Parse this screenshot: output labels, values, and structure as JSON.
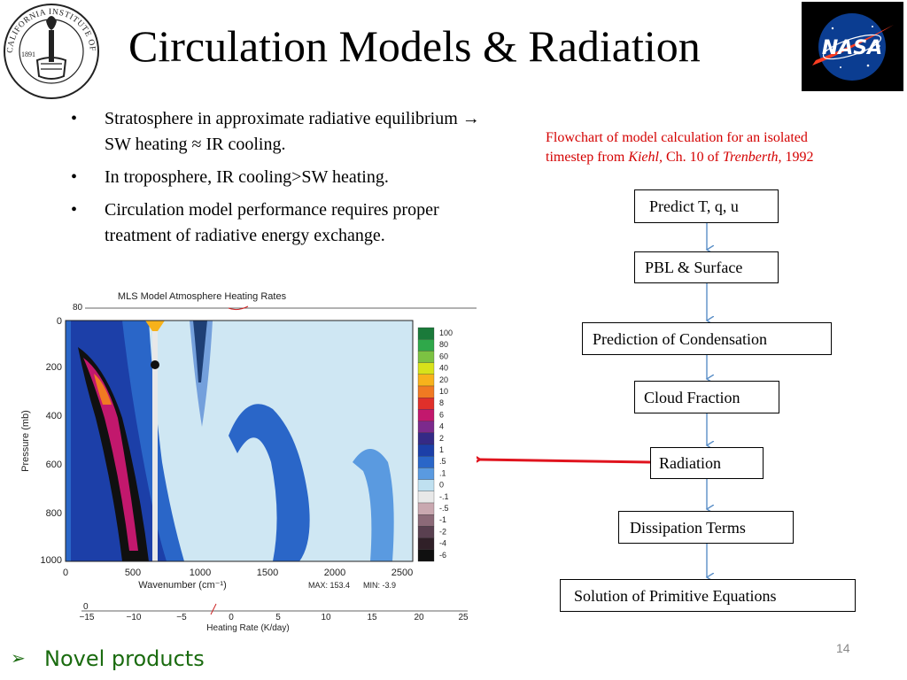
{
  "slide": {
    "title": "Circulation Models & Radiation",
    "page_number": "14"
  },
  "logos": {
    "caltech_seal_text": "CALIFORNIA INSTITUTE OF TECHNOLOGY",
    "caltech_year": "1891",
    "nasa_text": "NASA"
  },
  "bullets": [
    {
      "marker": "•",
      "text": "Stratosphere in approximate radiative equilibrium → SW heating ≈ IR cooling."
    },
    {
      "marker": "•",
      "text": "In troposphere, IR cooling>SW heating."
    },
    {
      "marker": "•",
      "text": "Circulation model performance requires proper treatment of radiative energy exchange."
    }
  ],
  "flowchart": {
    "caption_line1": "Flowchart of model calculation for an isolated",
    "caption_line2_prefix": "timestep from ",
    "caption_author": "Kiehl,",
    "caption_mid": " Ch. 10 of  ",
    "caption_book": "Trenberth",
    "caption_year": ", 1992",
    "steps": [
      "Predict T, q, u",
      "PBL & Surface",
      "Prediction of Condensation",
      "Cloud Fraction",
      "Radiation",
      "Dissipation Terms",
      "Solution of  Primitive Equations"
    ]
  },
  "figure": {
    "title": "MLS Model Atmosphere Heating Rates",
    "ylabel": "Pressure (mb)",
    "yticks": [
      "0",
      "200",
      "400",
      "600",
      "800",
      "1000"
    ],
    "xlabel": "Wavenumber (cm⁻¹)",
    "xticks": [
      "0",
      "500",
      "1000",
      "1500",
      "2000",
      "2500"
    ],
    "max_label": "MAX: 153.4",
    "min_label": "MIN:  -3.9",
    "x2label": "Heating Rate (K/day)",
    "x2ticks": [
      "−15",
      "−10",
      "−5",
      "0",
      "5",
      "10",
      "15",
      "20",
      "25"
    ],
    "top_tick": "80",
    "bottom_tick": "0",
    "colorbar_labels": [
      "100",
      "80",
      "60",
      "40",
      "20",
      "10",
      "8",
      "6",
      "4",
      "2",
      "1",
      ".5",
      ".1",
      "0",
      "-.1",
      "-.5",
      "-1",
      "-2",
      "-4",
      "-6"
    ],
    "colorbar_colors": [
      "#1a7a3a",
      "#2fa84a",
      "#7cc242",
      "#d8e21a",
      "#f7b21b",
      "#f07a22",
      "#e0302a",
      "#c2186d",
      "#7c2a8c",
      "#352a86",
      "#1c3fa8",
      "#2a66c8",
      "#5a9ae0",
      "#bfe0f0",
      "#e8e8e8",
      "#c9a8b0",
      "#8c6a78",
      "#5a4050",
      "#302028",
      "#101010"
    ]
  },
  "footer": {
    "marker": "➢",
    "text": "Novel products"
  },
  "colors": {
    "caption_red": "#d40000",
    "arrow_red": "#e0141e",
    "connector_blue": "#5b8fc7",
    "footer_green": "#1a6b0f",
    "nasa_bg": "#000000",
    "nasa_blue": "#0b3d91",
    "nasa_red": "#fc3d21"
  }
}
